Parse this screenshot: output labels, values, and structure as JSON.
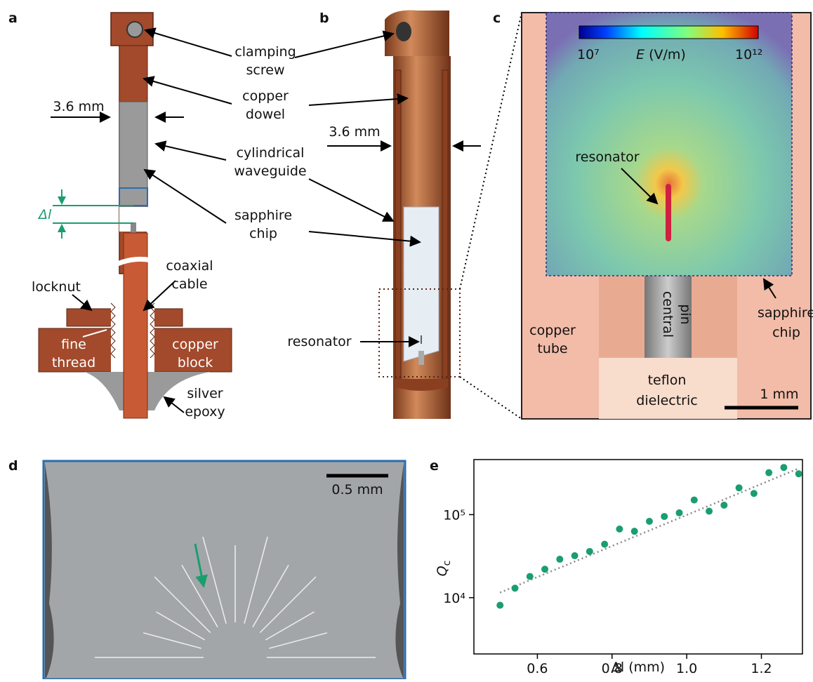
{
  "panel_letters": [
    "a",
    "b",
    "c",
    "d",
    "e"
  ],
  "panel_a": {
    "width_label": "3.6 mm",
    "gap_label": "Δl",
    "locknut": "locknut",
    "fine_thread": [
      "fine",
      "thread"
    ],
    "copper_block": [
      "copper",
      "block"
    ],
    "silver_epoxy": [
      "silver",
      "epoxy"
    ],
    "coaxial_cable": [
      "coaxial",
      "cable"
    ]
  },
  "shared_labels": {
    "clamping_screw": [
      "clamping",
      "screw"
    ],
    "copper_dowel": [
      "copper",
      "dowel"
    ],
    "cylindrical_waveguide": [
      "cylindrical",
      "waveguide"
    ],
    "sapphire_chip": [
      "sapphire",
      "chip"
    ]
  },
  "panel_b": {
    "width_label": "3.6 mm",
    "resonator": "resonator"
  },
  "panel_c": {
    "colorbar_min": "10⁷",
    "colorbar_quantity": "E",
    "colorbar_unit": "(V/m)",
    "colorbar_max": "10¹²",
    "resonator": "resonator",
    "central_pin": [
      "central",
      "pin"
    ],
    "sapphire_chip": [
      "sapphire",
      "chip"
    ],
    "copper_tube": [
      "copper",
      "tube"
    ],
    "teflon_dielectric": [
      "teflon",
      "dielectric"
    ],
    "scale_bar": "1 mm"
  },
  "panel_d": {
    "scale_bar": "0.5 mm"
  },
  "chart_data": {
    "type": "scatter",
    "xlabel": "Δl (mm)",
    "ylabel": "Q",
    "ylabel_subscript": "c",
    "x": [
      0.5,
      0.54,
      0.58,
      0.62,
      0.66,
      0.7,
      0.74,
      0.78,
      0.82,
      0.86,
      0.9,
      0.94,
      0.98,
      1.02,
      1.06,
      1.1,
      1.14,
      1.18,
      1.22,
      1.26,
      1.3
    ],
    "values": [
      8100,
      13000,
      18000,
      22000,
      29000,
      32000,
      36000,
      44000,
      67000,
      63000,
      83000,
      95000,
      105000,
      150000,
      110000,
      130000,
      210000,
      180000,
      320000,
      370000,
      310000
    ],
    "color": "#1a9e6e",
    "fit_line": {
      "x": [
        0.5,
        1.3
      ],
      "values": [
        11500,
        360000
      ],
      "color": "#888888"
    },
    "xlim": [
      0.43,
      1.31
    ],
    "xticks": [
      0.6,
      0.8,
      {
        "value": 1,
        "label": "1.0"
      },
      1.2
    ],
    "ylim": [
      2100,
      460000
    ],
    "log_y": true,
    "yticks": [
      {
        "value": 10000,
        "label": "10⁴"
      },
      {
        "value": 100000,
        "label": "10⁵"
      }
    ]
  }
}
